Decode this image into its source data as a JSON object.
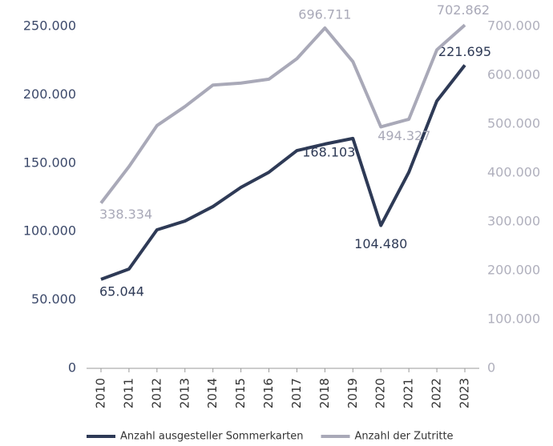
{
  "chart_data": {
    "type": "line",
    "categories": [
      "2010",
      "2011",
      "2012",
      "2013",
      "2014",
      "2015",
      "2016",
      "2017",
      "2018",
      "2019",
      "2020",
      "2021",
      "2022",
      "2023"
    ],
    "series": [
      {
        "name": "Anzahl ausgesteller Sommerkarten",
        "color": "#2e3a56",
        "values": [
          65044,
          72600,
          101300,
          107700,
          118300,
          132300,
          143400,
          159200,
          164000,
          168103,
          104480,
          143400,
          195500,
          221695
        ],
        "value_labels": [
          "65.044",
          null,
          null,
          null,
          null,
          null,
          null,
          null,
          null,
          "168.103",
          "104.480",
          null,
          null,
          "221.695"
        ]
      },
      {
        "name": "Anzahl der Zutritte",
        "color": "#a9a9b8",
        "axis": "y2",
        "values": [
          338334,
          413000,
          497000,
          536000,
          580000,
          584000,
          592000,
          634000,
          696711,
          628000,
          494327,
          510000,
          652000,
          702862
        ],
        "value_labels": [
          "338.334",
          null,
          null,
          null,
          null,
          null,
          null,
          null,
          "696.711",
          null,
          "494.327",
          null,
          null,
          "702.862"
        ]
      }
    ],
    "ylim": [
      0,
      250000
    ],
    "yticks": [
      0,
      {
        "value": 50000,
        "label": "50.000"
      },
      {
        "value": 100000,
        "label": "100.000"
      },
      {
        "value": 150000,
        "label": "150.000"
      },
      {
        "value": 200000,
        "label": "200.000"
      },
      {
        "value": 250000,
        "label": "250.000"
      }
    ],
    "y2lim": [
      0,
      700000
    ],
    "y2ticks": [
      0,
      {
        "value": 100000,
        "label": "100.000"
      },
      {
        "value": 200000,
        "label": "200.000"
      },
      {
        "value": 300000,
        "label": "300.000"
      },
      {
        "value": 400000,
        "label": "400.000"
      },
      {
        "value": 500000,
        "label": "500.000"
      },
      {
        "value": 600000,
        "label": "600.000"
      },
      {
        "value": 700000,
        "label": "700.000"
      }
    ],
    "legend": "bottom"
  }
}
